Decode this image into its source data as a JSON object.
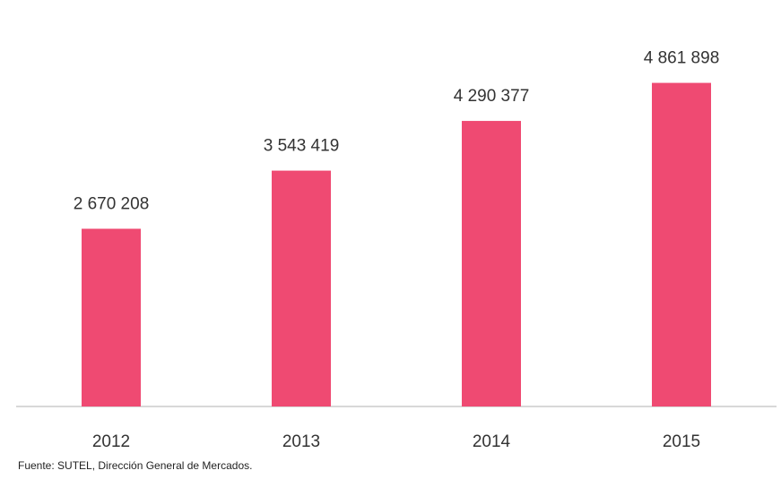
{
  "chart_data": {
    "type": "bar",
    "categories": [
      "2012",
      "2013",
      "2014",
      "2015"
    ],
    "values": [
      2670208,
      3543419,
      4290377,
      4861898
    ],
    "value_labels": [
      "2 670 208",
      "3 543 419",
      "4 290 377",
      "4 861 898"
    ],
    "title": "",
    "xlabel": "",
    "ylabel": "",
    "ylim": [
      0,
      5300000
    ],
    "grid": false,
    "legend": "none",
    "bar_color": "#ef4a72",
    "axis_color": "#cccccc"
  },
  "footer": {
    "source": "Fuente: SUTEL, Dirección General de Mercados."
  }
}
